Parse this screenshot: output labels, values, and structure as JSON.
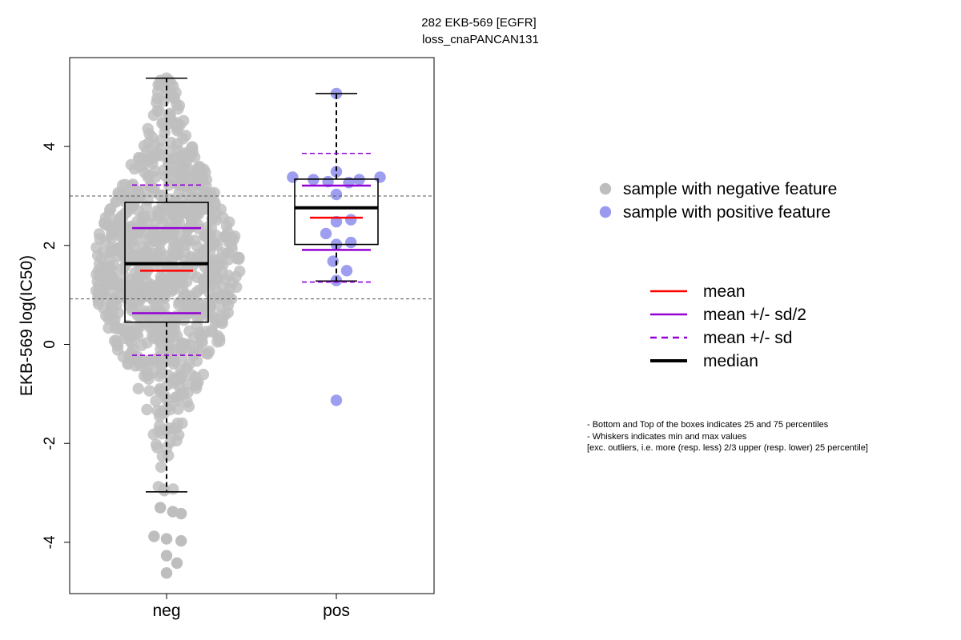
{
  "chart_data": {
    "type": "box-scatter",
    "title": "282 EKB-569 [EGFR]",
    "subtitle": "loss_cnaPANCAN131",
    "xlabel": "",
    "ylabel": "EKB-569 log(IC50)",
    "ylim": [
      -5,
      5.8
    ],
    "yticks": [
      -4,
      -2,
      0,
      2,
      4
    ],
    "categories": [
      "neg",
      "pos"
    ],
    "reference_lines": [
      3.0,
      0.92
    ],
    "groups": [
      {
        "name": "neg",
        "n_points": 900,
        "point_color": "#bebebe",
        "stats": {
          "whisker_min": -2.98,
          "q1": 0.45,
          "median": 1.63,
          "q3": 2.87,
          "whisker_max": 5.38,
          "mean": 1.49,
          "mean_minus_half_sd": 0.63,
          "mean_plus_half_sd": 2.35,
          "mean_minus_sd": -0.22,
          "mean_plus_sd": 3.22
        },
        "outliers_low": [
          -3.3,
          -3.38,
          -3.42,
          -3.88,
          -3.93,
          -3.97,
          -4.27,
          -4.42,
          -4.62
        ]
      },
      {
        "name": "pos",
        "point_color": "#9999f0",
        "stats": {
          "whisker_min": 1.28,
          "q1": 2.02,
          "median": 2.76,
          "q3": 3.34,
          "whisker_max": 5.07,
          "mean": 2.56,
          "mean_minus_half_sd": 1.91,
          "mean_plus_half_sd": 3.21,
          "mean_minus_sd": 1.26,
          "mean_plus_sd": 3.86
        },
        "points": [
          {
            "y": 5.07,
            "off": 0
          },
          {
            "y": 3.49,
            "off": 0
          },
          {
            "y": 3.38,
            "off": -1.05
          },
          {
            "y": 3.38,
            "off": 1.05
          },
          {
            "y": 3.33,
            "off": -0.55
          },
          {
            "y": 3.33,
            "off": 0.55
          },
          {
            "y": 3.29,
            "off": -0.2
          },
          {
            "y": 3.27,
            "off": 0.3
          },
          {
            "y": 3.03,
            "off": 0
          },
          {
            "y": 2.52,
            "off": 0.35
          },
          {
            "y": 2.48,
            "off": 0
          },
          {
            "y": 2.24,
            "off": -0.25
          },
          {
            "y": 2.06,
            "off": 0.35
          },
          {
            "y": 2.02,
            "off": 0
          },
          {
            "y": 1.68,
            "off": -0.08
          },
          {
            "y": 1.49,
            "off": 0.25
          },
          {
            "y": 1.29,
            "off": 0
          },
          {
            "y": -1.13,
            "off": 0
          }
        ]
      }
    ],
    "legend_points": [
      {
        "label": "sample with negative feature",
        "color": "#bebebe"
      },
      {
        "label": "sample with positive feature",
        "color": "#9999f0"
      }
    ],
    "legend_lines": [
      {
        "label": "mean",
        "color": "#ff0000",
        "dash": false
      },
      {
        "label": "mean +/- sd/2",
        "color": "#9400d3",
        "dash": false
      },
      {
        "label": "mean +/- sd",
        "color": "#9400d3",
        "dash": true
      },
      {
        "label": "median",
        "color": "#000000",
        "dash": false
      }
    ],
    "notes": [
      "- Bottom and Top of the boxes indicates 25 and 75 percentiles",
      "- Whiskers indicates min and max values",
      "[exc. outliers, i.e. more (resp. less) 2/3 upper (resp. lower) 25 percentile]"
    ]
  }
}
